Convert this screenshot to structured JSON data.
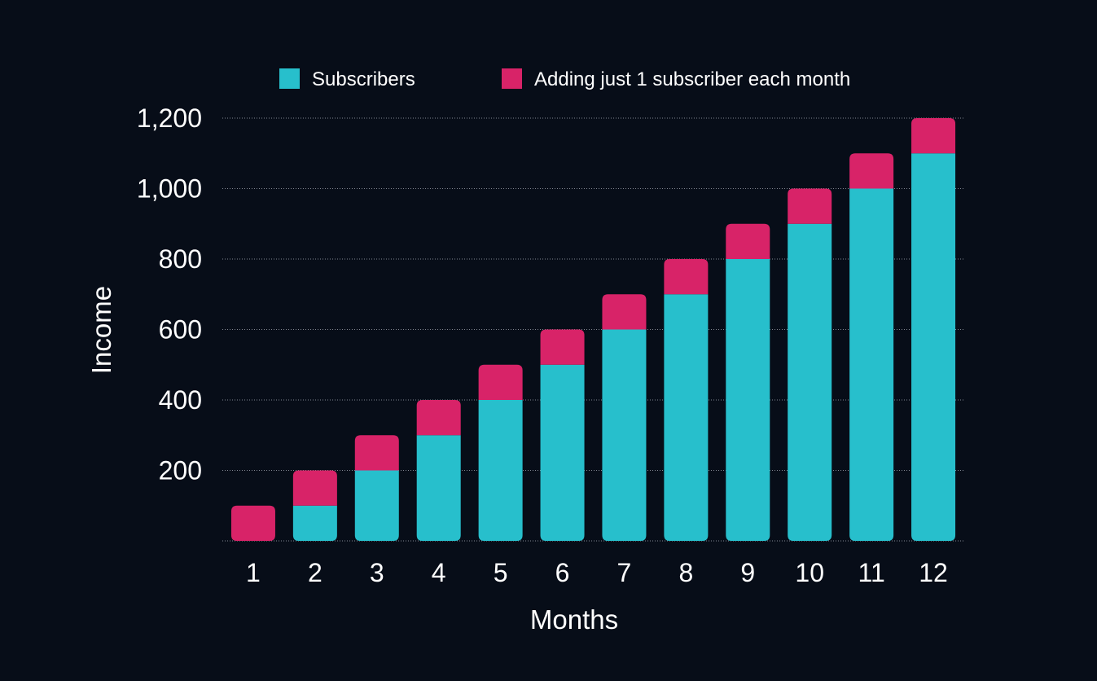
{
  "chart_data": {
    "type": "bar",
    "stacked": true,
    "categories": [
      "1",
      "2",
      "3",
      "4",
      "5",
      "6",
      "7",
      "8",
      "9",
      "10",
      "11",
      "12"
    ],
    "series": [
      {
        "name": "Subscribers",
        "color": "#27bfcc",
        "values": [
          0,
          100,
          200,
          300,
          400,
          500,
          600,
          700,
          800,
          900,
          1000,
          1100
        ]
      },
      {
        "name": "Adding just 1 subscriber each month",
        "color": "#d82368",
        "values": [
          100,
          100,
          100,
          100,
          100,
          100,
          100,
          100,
          100,
          100,
          100,
          100
        ]
      }
    ],
    "xlabel": "Months",
    "ylabel": "Income",
    "ylim": [
      0,
      1200
    ],
    "yticks": [
      "200",
      "400",
      "600",
      "800",
      "1,000",
      "1,200"
    ],
    "grid": true,
    "legend_position": "top"
  }
}
